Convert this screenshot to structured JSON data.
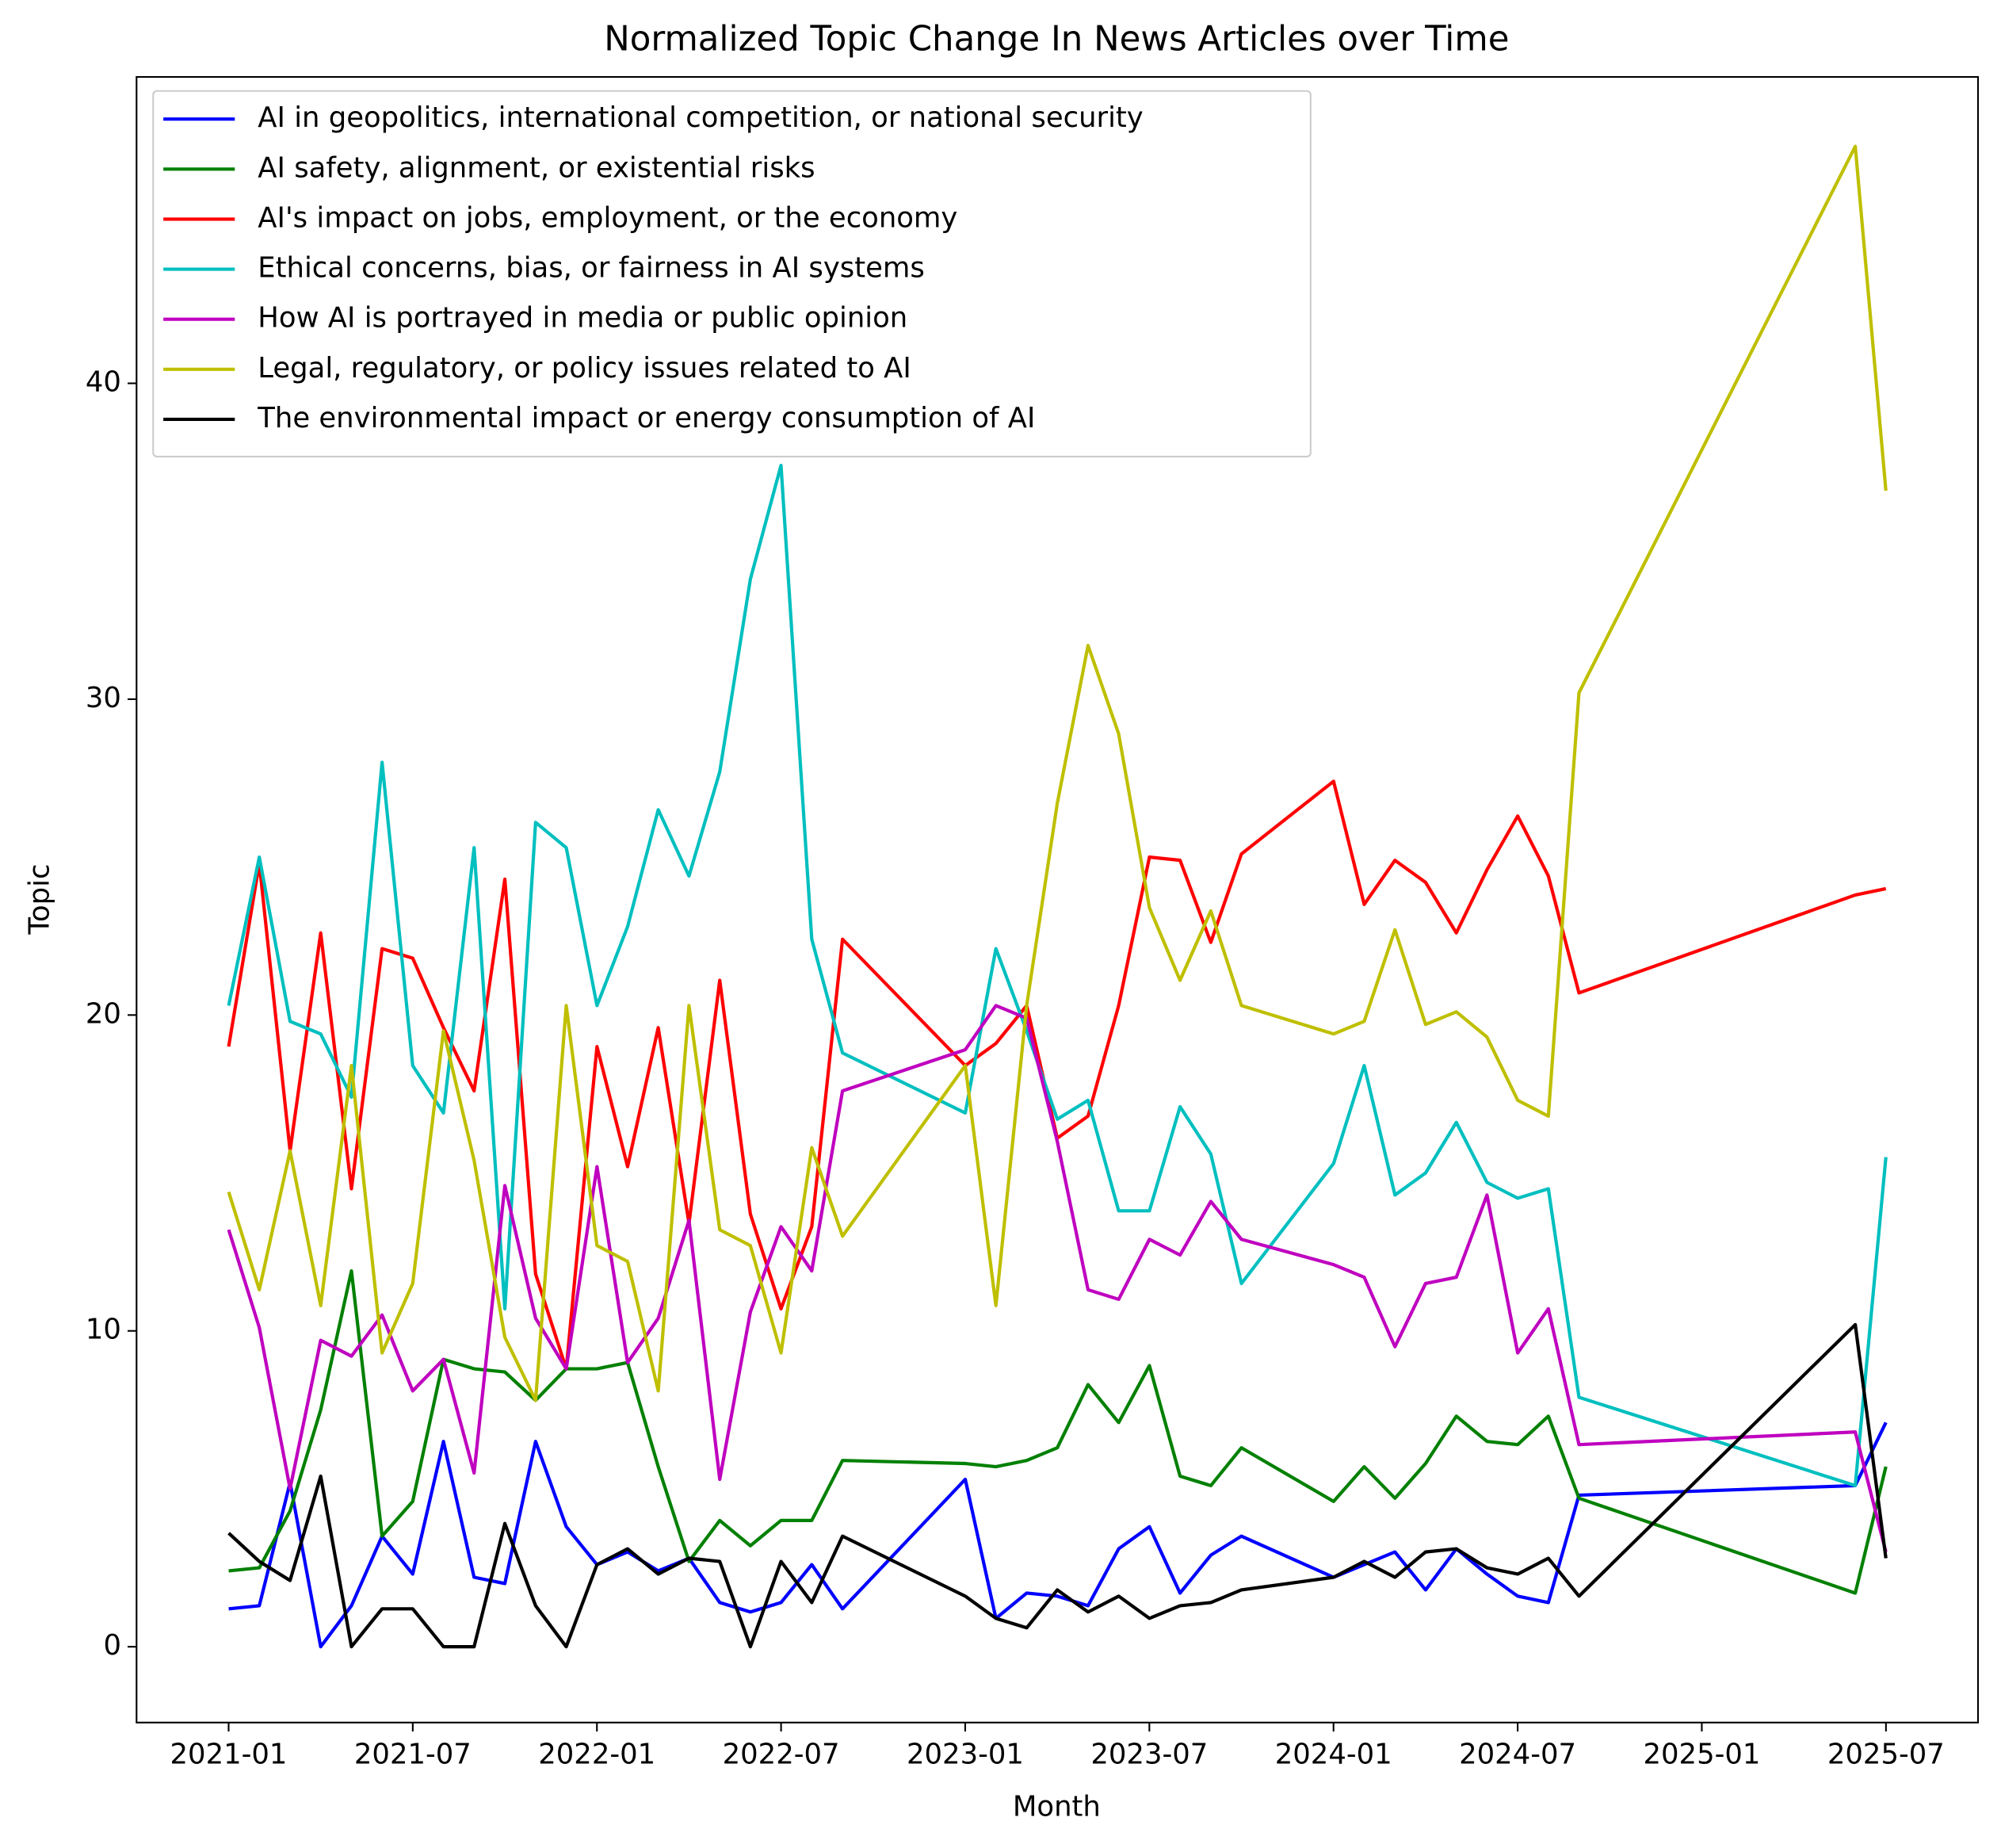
{
  "chart_data": {
    "type": "line",
    "title": "Normalized Topic Change In News Articles over Time",
    "x_label": "Month",
    "y_label": "Topic",
    "x": [
      "2021-01",
      "2021-02",
      "2021-03",
      "2021-04",
      "2021-05",
      "2021-06",
      "2021-07",
      "2021-08",
      "2021-09",
      "2021-10",
      "2021-11",
      "2021-12",
      "2022-01",
      "2022-02",
      "2022-03",
      "2022-04",
      "2022-05",
      "2022-06",
      "2022-07",
      "2022-08",
      "2022-09",
      "2023-01",
      "2023-02",
      "2023-03",
      "2023-04",
      "2023-05",
      "2023-06",
      "2023-07",
      "2023-08",
      "2023-09",
      "2023-10",
      "2024-01",
      "2024-02",
      "2024-03",
      "2024-04",
      "2024-05",
      "2024-06",
      "2024-07",
      "2024-08",
      "2024-09",
      "2025-06",
      "2025-07"
    ],
    "series": [
      {
        "name": "AI in geopolitics, international competition, or national security",
        "color": "#0000ff",
        "values": [
          1.2,
          1.3,
          5.2,
          0,
          1.3,
          3.5,
          2.3,
          6.5,
          2.2,
          2.0,
          6.5,
          3.8,
          2.6,
          3.0,
          2.4,
          2.8,
          1.4,
          1.1,
          1.4,
          2.6,
          1.2,
          5.3,
          0.9,
          1.7,
          1.6,
          1.3,
          3.1,
          3.8,
          1.7,
          2.9,
          3.5,
          2.2,
          2.6,
          3.0,
          1.8,
          3.1,
          2.3,
          1.6,
          1.4,
          4.8,
          5.1,
          7.1
        ]
      },
      {
        "name": "AI safety, alignment, or existential risks",
        "color": "#008000",
        "values": [
          2.4,
          2.5,
          4.3,
          7.5,
          11.9,
          3.5,
          4.6,
          9.1,
          8.8,
          8.7,
          7.8,
          8.8,
          8.8,
          9.0,
          5.7,
          2.7,
          4.0,
          3.2,
          4.0,
          4.0,
          5.9,
          5.8,
          5.7,
          5.9,
          6.3,
          8.3,
          7.1,
          8.9,
          5.4,
          5.1,
          6.3,
          4.6,
          5.7,
          4.7,
          5.8,
          7.3,
          6.5,
          6.4,
          7.3,
          4.7,
          1.7,
          5.7
        ]
      },
      {
        "name": "AI's impact on jobs, employment, or the economy",
        "color": "#ff0000",
        "values": [
          19.0,
          24.8,
          15.7,
          22.6,
          14.5,
          22.1,
          21.8,
          19.6,
          17.6,
          24.3,
          11.8,
          8.8,
          19.0,
          15.2,
          19.6,
          13.4,
          21.1,
          13.7,
          10.7,
          13.3,
          22.4,
          18.4,
          19.1,
          20.3,
          16.1,
          16.8,
          20.3,
          25.0,
          24.9,
          22.3,
          25.1,
          27.4,
          23.5,
          24.9,
          24.2,
          22.6,
          24.6,
          26.3,
          24.4,
          20.7,
          23.8,
          24.0
        ]
      },
      {
        "name": "Ethical concerns, bias, or fairness in AI systems",
        "color": "#00bfbf",
        "values": [
          20.3,
          25.0,
          19.8,
          19.4,
          17.4,
          28.0,
          18.4,
          16.9,
          25.3,
          10.7,
          26.1,
          25.3,
          20.3,
          22.8,
          26.5,
          24.4,
          27.7,
          33.8,
          37.4,
          22.4,
          18.8,
          16.9,
          22.1,
          19.5,
          16.7,
          17.3,
          13.8,
          13.8,
          17.1,
          15.6,
          11.5,
          15.3,
          18.4,
          14.3,
          15.0,
          16.6,
          14.7,
          14.2,
          14.5,
          7.9,
          5.1,
          15.5
        ]
      },
      {
        "name": "How AI is portrayed in media or public opinion",
        "color": "#bf00bf",
        "values": [
          13.2,
          10.1,
          5.0,
          9.7,
          9.2,
          10.5,
          8.1,
          9.1,
          5.5,
          14.6,
          10.4,
          8.8,
          15.2,
          9.0,
          10.4,
          13.5,
          5.3,
          10.6,
          13.3,
          11.9,
          17.6,
          18.9,
          20.3,
          19.9,
          16.0,
          11.3,
          11.0,
          12.9,
          12.4,
          14.1,
          12.9,
          12.1,
          11.7,
          9.5,
          11.5,
          11.7,
          14.3,
          9.3,
          10.7,
          6.4,
          6.8,
          3.0
        ]
      },
      {
        "name": "Legal, regulatory, or policy issues related to AI",
        "color": "#bfbf00",
        "values": [
          14.4,
          11.3,
          15.7,
          10.8,
          18.4,
          9.3,
          11.5,
          19.5,
          15.4,
          9.8,
          7.8,
          20.3,
          12.7,
          12.2,
          8.1,
          20.3,
          13.2,
          12.7,
          9.3,
          15.8,
          13.0,
          18.4,
          10.8,
          20.3,
          26.7,
          31.7,
          28.9,
          23.4,
          21.1,
          23.3,
          20.3,
          19.4,
          19.8,
          22.7,
          19.7,
          20.1,
          19.3,
          17.3,
          16.8,
          30.2,
          47.5,
          36.6
        ]
      },
      {
        "name": "The environmental impact or energy consumption of AI",
        "color": "#000000",
        "values": [
          3.6,
          2.7,
          2.1,
          5.4,
          0.0,
          1.2,
          1.2,
          0.0,
          0.0,
          3.9,
          1.3,
          0.0,
          2.6,
          3.1,
          2.3,
          2.8,
          2.7,
          0.0,
          2.7,
          1.4,
          3.5,
          1.6,
          0.9,
          0.6,
          1.8,
          1.1,
          1.6,
          0.9,
          1.3,
          1.4,
          1.8,
          2.2,
          2.7,
          2.2,
          3.0,
          3.1,
          2.5,
          2.3,
          2.8,
          1.6,
          10.2,
          2.8
        ]
      }
    ],
    "xlim": [
      "2020-10",
      "2025-10"
    ],
    "xticks": [
      "2021-01",
      "2021-07",
      "2022-01",
      "2022-07",
      "2023-01",
      "2023-07",
      "2024-01",
      "2024-07",
      "2025-01",
      "2025-07"
    ],
    "ylim": [
      -2.4,
      49.7
    ],
    "yticks": [
      0,
      10,
      20,
      30,
      40
    ],
    "legend": "upper left"
  }
}
